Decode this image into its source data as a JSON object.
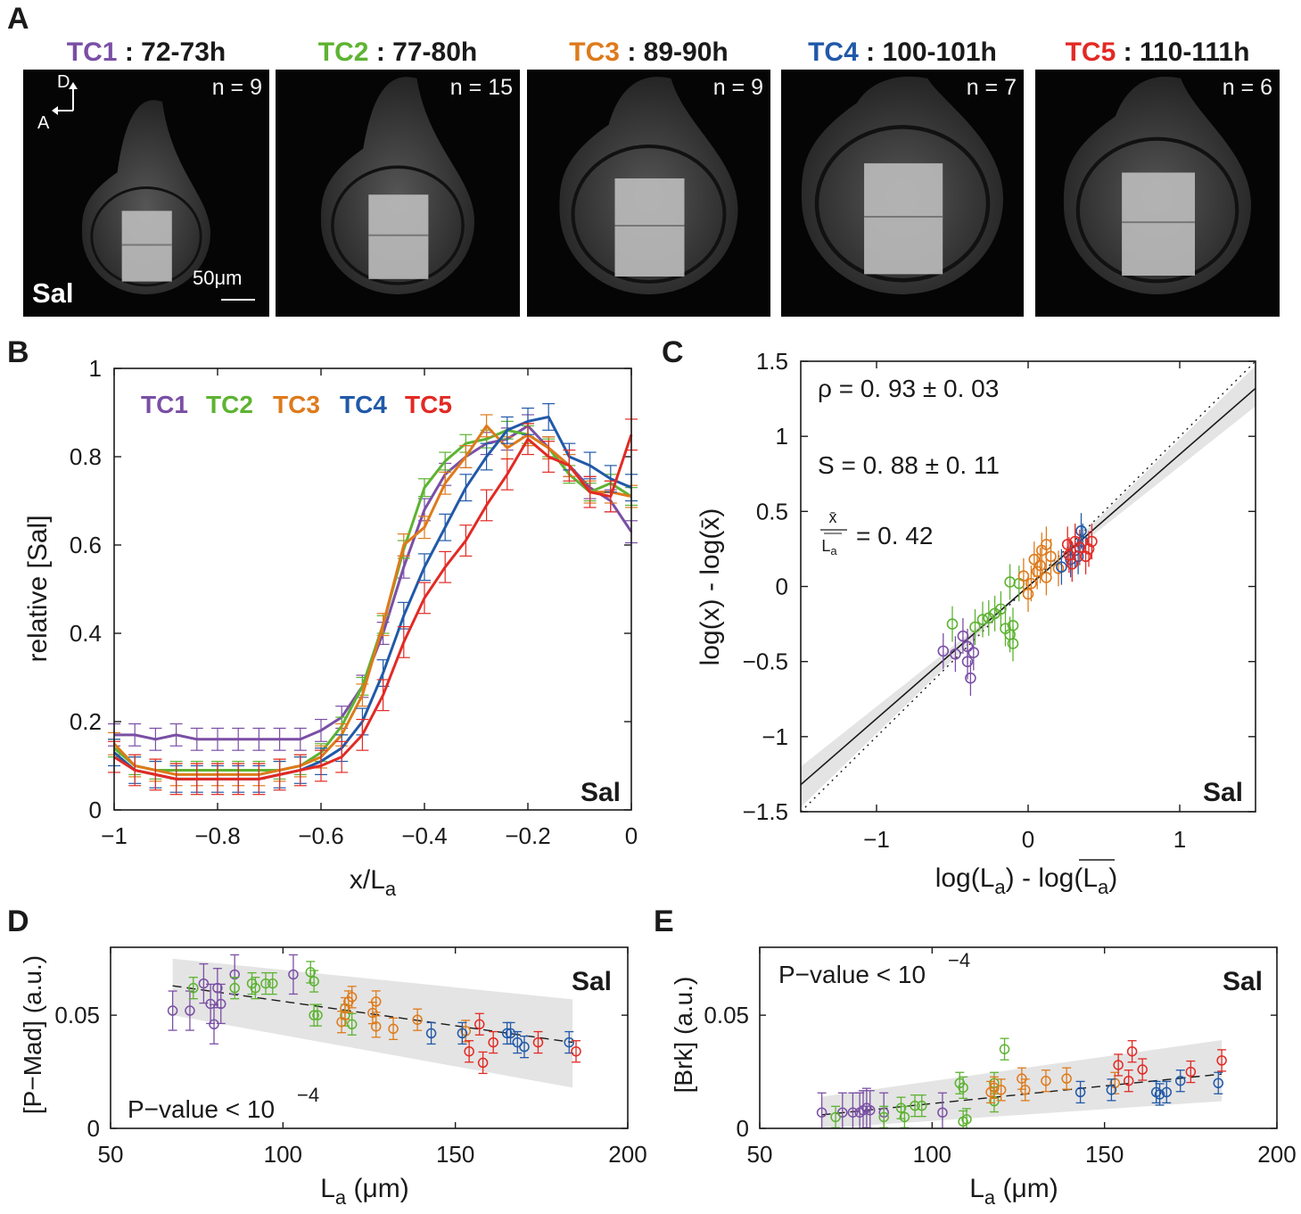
{
  "panel_letters": {
    "a": "A",
    "b": "B",
    "c": "C",
    "d": "D",
    "e": "E"
  },
  "colors": {
    "TC1": "#7a4fa5",
    "TC2": "#5db332",
    "TC3": "#de7a1b",
    "TC4": "#2159a8",
    "TC5": "#e22a24"
  },
  "panel_a": {
    "images": [
      {
        "tc": "TC1",
        "time": " : 72-73h",
        "n": "n = 9",
        "color": "#7a4fa5"
      },
      {
        "tc": "TC2",
        "time": " : 77-80h",
        "n": "n = 15",
        "color": "#5db332"
      },
      {
        "tc": "TC3",
        "time": " : 89-90h",
        "n": "n = 9",
        "color": "#de7a1b"
      },
      {
        "tc": "TC4",
        "time": " : 100-101h",
        "n": "n = 7",
        "color": "#2159a8"
      },
      {
        "tc": "TC5",
        "time": " : 110-111h",
        "n": "n = 6",
        "color": "#e22a24"
      }
    ],
    "axis_d": "D",
    "axis_a": "A",
    "scale_label": "50μm",
    "protein_label": "Sal"
  },
  "chart_data": [
    {
      "panel": "B",
      "type": "line",
      "xlabel": "x/L",
      "xlabel_sub": "a",
      "ylabel": "relative [Sal]",
      "xlim": [
        -1,
        0
      ],
      "ylim": [
        0,
        1
      ],
      "xticks": [
        -1,
        -0.8,
        -0.6,
        -0.4,
        -0.2,
        0
      ],
      "xtick_labels": [
        "−1",
        "−0.8",
        "−0.6",
        "−0.4",
        "−0.2",
        "0"
      ],
      "yticks": [
        0,
        0.2,
        0.4,
        0.6,
        0.8,
        1
      ],
      "ytick_labels": [
        "0",
        "0.2",
        "0.4",
        "0.6",
        "0.8",
        "1"
      ],
      "legend": [
        "TC1",
        "TC2",
        "TC3",
        "TC4",
        "TC5"
      ],
      "annotation": "Sal",
      "x": [
        -1,
        -0.96,
        -0.92,
        -0.88,
        -0.84,
        -0.8,
        -0.76,
        -0.72,
        -0.68,
        -0.64,
        -0.6,
        -0.56,
        -0.52,
        -0.48,
        -0.44,
        -0.4,
        -0.36,
        -0.32,
        -0.28,
        -0.24,
        -0.2,
        -0.16,
        -0.12,
        -0.08,
        -0.04,
        0
      ],
      "series": [
        {
          "name": "TC1",
          "values": [
            0.17,
            0.17,
            0.16,
            0.17,
            0.16,
            0.16,
            0.16,
            0.16,
            0.16,
            0.16,
            0.18,
            0.21,
            0.28,
            0.4,
            0.55,
            0.68,
            0.76,
            0.8,
            0.83,
            0.84,
            0.87,
            0.82,
            0.78,
            0.73,
            0.7,
            0.63
          ],
          "err": 0.025
        },
        {
          "name": "TC2",
          "values": [
            0.14,
            0.1,
            0.09,
            0.09,
            0.09,
            0.09,
            0.09,
            0.09,
            0.09,
            0.1,
            0.13,
            0.19,
            0.28,
            0.42,
            0.59,
            0.73,
            0.79,
            0.83,
            0.84,
            0.86,
            0.85,
            0.82,
            0.76,
            0.72,
            0.74,
            0.71
          ],
          "err": 0.02
        },
        {
          "name": "TC3",
          "values": [
            0.15,
            0.1,
            0.09,
            0.08,
            0.08,
            0.08,
            0.08,
            0.08,
            0.09,
            0.1,
            0.12,
            0.17,
            0.26,
            0.42,
            0.6,
            0.64,
            0.74,
            0.8,
            0.87,
            0.82,
            0.85,
            0.82,
            0.78,
            0.72,
            0.72,
            0.71
          ],
          "err": 0.025
        },
        {
          "name": "TC4",
          "values": [
            0.13,
            0.09,
            0.08,
            0.07,
            0.07,
            0.07,
            0.07,
            0.07,
            0.08,
            0.09,
            0.11,
            0.14,
            0.2,
            0.31,
            0.44,
            0.55,
            0.64,
            0.73,
            0.8,
            0.86,
            0.88,
            0.89,
            0.8,
            0.78,
            0.75,
            0.73
          ],
          "err": 0.03
        },
        {
          "name": "TC5",
          "values": [
            0.12,
            0.09,
            0.08,
            0.07,
            0.07,
            0.07,
            0.07,
            0.07,
            0.08,
            0.09,
            0.1,
            0.12,
            0.17,
            0.26,
            0.38,
            0.48,
            0.55,
            0.61,
            0.69,
            0.76,
            0.84,
            0.8,
            0.78,
            0.72,
            0.71,
            0.85
          ],
          "err": 0.035
        }
      ]
    },
    {
      "panel": "C",
      "type": "scatter",
      "xlabel": "log(L",
      "xlabel_sub": "a",
      "xlabel_mid": ") - log(",
      "xlabel_bar": "L",
      "xlabel_end": ")",
      "ylabel": "log(x) - log(x̄)",
      "xlim": [
        -1.5,
        1.5
      ],
      "ylim": [
        -1.5,
        1.5
      ],
      "xticks": [
        -1,
        0,
        1
      ],
      "xtick_labels": [
        "−1",
        "0",
        "1"
      ],
      "yticks": [
        -1.5,
        -1,
        -0.5,
        0,
        0.5,
        1,
        1.5
      ],
      "ytick_labels": [
        "−1.5",
        "−1",
        "−0.5",
        "0",
        "0.5",
        "1",
        "1.5"
      ],
      "rho_text": "ρ = 0. 93 ± 0. 03",
      "s_text": "S = 0. 88 ± 0. 11",
      "ratio_num": "x̄",
      "ratio_den": "L",
      "ratio_den_sub": "a",
      "ratio_val": "= 0. 42",
      "annotation": "Sal",
      "fit_slope": 0.88,
      "points": [
        {
          "s": "TC1",
          "x": -0.56,
          "y": -0.43
        },
        {
          "s": "TC1",
          "x": -0.48,
          "y": -0.45
        },
        {
          "s": "TC1",
          "x": -0.43,
          "y": -0.33
        },
        {
          "s": "TC1",
          "x": -0.4,
          "y": -0.4
        },
        {
          "s": "TC1",
          "x": -0.4,
          "y": -0.5
        },
        {
          "s": "TC1",
          "x": -0.38,
          "y": -0.61
        },
        {
          "s": "TC1",
          "x": -0.36,
          "y": -0.44
        },
        {
          "s": "TC2",
          "x": -0.5,
          "y": -0.25
        },
        {
          "s": "TC2",
          "x": -0.35,
          "y": -0.27
        },
        {
          "s": "TC2",
          "x": -0.3,
          "y": -0.22
        },
        {
          "s": "TC2",
          "x": -0.26,
          "y": -0.21
        },
        {
          "s": "TC2",
          "x": -0.22,
          "y": -0.18
        },
        {
          "s": "TC2",
          "x": -0.18,
          "y": -0.15
        },
        {
          "s": "TC2",
          "x": -0.15,
          "y": -0.28
        },
        {
          "s": "TC2",
          "x": -0.12,
          "y": -0.32
        },
        {
          "s": "TC2",
          "x": -0.1,
          "y": -0.26
        },
        {
          "s": "TC2",
          "x": -0.1,
          "y": -0.38
        },
        {
          "s": "TC2",
          "x": -0.12,
          "y": 0.03
        },
        {
          "s": "TC2",
          "x": -0.06,
          "y": 0.02
        },
        {
          "s": "TC3",
          "x": -0.03,
          "y": 0.07
        },
        {
          "s": "TC3",
          "x": 0.0,
          "y": -0.05
        },
        {
          "s": "TC3",
          "x": 0.02,
          "y": 0.02
        },
        {
          "s": "TC3",
          "x": 0.04,
          "y": 0.18
        },
        {
          "s": "TC3",
          "x": 0.06,
          "y": 0.1
        },
        {
          "s": "TC3",
          "x": 0.08,
          "y": 0.14
        },
        {
          "s": "TC3",
          "x": 0.09,
          "y": 0.24
        },
        {
          "s": "TC3",
          "x": 0.12,
          "y": 0.06
        },
        {
          "s": "TC3",
          "x": 0.12,
          "y": 0.28
        },
        {
          "s": "TC3",
          "x": 0.15,
          "y": 0.2
        },
        {
          "s": "TC3",
          "x": 0.2,
          "y": 0.12
        },
        {
          "s": "TC4",
          "x": 0.22,
          "y": 0.13
        },
        {
          "s": "TC4",
          "x": 0.28,
          "y": 0.18
        },
        {
          "s": "TC4",
          "x": 0.31,
          "y": 0.24
        },
        {
          "s": "TC4",
          "x": 0.33,
          "y": 0.2
        },
        {
          "s": "TC4",
          "x": 0.35,
          "y": 0.37
        },
        {
          "s": "TC4",
          "x": 0.36,
          "y": 0.3
        },
        {
          "s": "TC5",
          "x": 0.26,
          "y": 0.28
        },
        {
          "s": "TC5",
          "x": 0.27,
          "y": 0.21
        },
        {
          "s": "TC5",
          "x": 0.29,
          "y": 0.15
        },
        {
          "s": "TC5",
          "x": 0.31,
          "y": 0.3
        },
        {
          "s": "TC5",
          "x": 0.34,
          "y": 0.26
        },
        {
          "s": "TC5",
          "x": 0.38,
          "y": 0.2
        },
        {
          "s": "TC5",
          "x": 0.4,
          "y": 0.25
        },
        {
          "s": "TC5",
          "x": 0.42,
          "y": 0.3
        }
      ]
    },
    {
      "panel": "D",
      "type": "scatter",
      "xlabel": "L",
      "xlabel_sub": "a",
      "xlabel_unit": " (μm)",
      "ylabel": "[P−Mad] (a.u.)",
      "xlim": [
        50,
        200
      ],
      "ylim": [
        0,
        0.08
      ],
      "xticks": [
        50,
        100,
        150,
        200
      ],
      "xtick_labels": [
        "50",
        "100",
        "150",
        "200"
      ],
      "yticks": [
        0,
        0.05
      ],
      "ytick_labels": [
        "0",
        "0.05"
      ],
      "pvalue_text": "P−value < 10",
      "pvalue_exp": "−4",
      "annotation": "Sal",
      "fit": [
        [
          68,
          0.063
        ],
        [
          184,
          0.038
        ]
      ],
      "band": [
        [
          68,
          0.075
        ],
        [
          184,
          0.057
        ],
        [
          184,
          0.018
        ],
        [
          68,
          0.05
        ]
      ],
      "points": [
        {
          "s": "TC1",
          "x": 68,
          "y": 0.052
        },
        {
          "s": "TC1",
          "x": 73,
          "y": 0.052
        },
        {
          "s": "TC1",
          "x": 77,
          "y": 0.064
        },
        {
          "s": "TC1",
          "x": 79,
          "y": 0.055
        },
        {
          "s": "TC1",
          "x": 80,
          "y": 0.046
        },
        {
          "s": "TC1",
          "x": 81,
          "y": 0.062
        },
        {
          "s": "TC1",
          "x": 82,
          "y": 0.055
        },
        {
          "s": "TC1",
          "x": 86,
          "y": 0.068
        },
        {
          "s": "TC1",
          "x": 103,
          "y": 0.068
        },
        {
          "s": "TC2",
          "x": 74,
          "y": 0.062
        },
        {
          "s": "TC2",
          "x": 86,
          "y": 0.062
        },
        {
          "s": "TC2",
          "x": 91,
          "y": 0.064
        },
        {
          "s": "TC2",
          "x": 92,
          "y": 0.062
        },
        {
          "s": "TC2",
          "x": 95,
          "y": 0.064
        },
        {
          "s": "TC2",
          "x": 97,
          "y": 0.064
        },
        {
          "s": "TC2",
          "x": 108,
          "y": 0.069
        },
        {
          "s": "TC2",
          "x": 109,
          "y": 0.065
        },
        {
          "s": "TC2",
          "x": 109,
          "y": 0.05
        },
        {
          "s": "TC2",
          "x": 110,
          "y": 0.05
        },
        {
          "s": "TC2",
          "x": 118,
          "y": 0.05
        },
        {
          "s": "TC2",
          "x": 120,
          "y": 0.046
        },
        {
          "s": "TC3",
          "x": 117,
          "y": 0.047
        },
        {
          "s": "TC3",
          "x": 118,
          "y": 0.053
        },
        {
          "s": "TC3",
          "x": 119,
          "y": 0.056
        },
        {
          "s": "TC3",
          "x": 120,
          "y": 0.058
        },
        {
          "s": "TC3",
          "x": 126,
          "y": 0.051
        },
        {
          "s": "TC3",
          "x": 127,
          "y": 0.045
        },
        {
          "s": "TC3",
          "x": 127,
          "y": 0.056
        },
        {
          "s": "TC3",
          "x": 132,
          "y": 0.044
        },
        {
          "s": "TC3",
          "x": 139,
          "y": 0.048
        },
        {
          "s": "TC3",
          "x": 153,
          "y": 0.043
        },
        {
          "s": "TC4",
          "x": 143,
          "y": 0.042
        },
        {
          "s": "TC4",
          "x": 152,
          "y": 0.042
        },
        {
          "s": "TC4",
          "x": 165,
          "y": 0.042
        },
        {
          "s": "TC4",
          "x": 166,
          "y": 0.042
        },
        {
          "s": "TC4",
          "x": 168,
          "y": 0.038
        },
        {
          "s": "TC4",
          "x": 170,
          "y": 0.036
        },
        {
          "s": "TC4",
          "x": 183,
          "y": 0.038
        },
        {
          "s": "TC5",
          "x": 154,
          "y": 0.034
        },
        {
          "s": "TC5",
          "x": 157,
          "y": 0.046
        },
        {
          "s": "TC5",
          "x": 158,
          "y": 0.029
        },
        {
          "s": "TC5",
          "x": 161,
          "y": 0.038
        },
        {
          "s": "TC5",
          "x": 174,
          "y": 0.038
        },
        {
          "s": "TC5",
          "x": 185,
          "y": 0.034
        }
      ]
    },
    {
      "panel": "E",
      "type": "scatter",
      "xlabel": "L",
      "xlabel_sub": "a",
      "xlabel_unit": " (μm)",
      "ylabel": "[Brk] (a.u.)",
      "xlim": [
        50,
        200
      ],
      "ylim": [
        0,
        0.08
      ],
      "xticks": [
        50,
        100,
        150,
        200
      ],
      "xtick_labels": [
        "50",
        "100",
        "150",
        "200"
      ],
      "yticks": [
        0,
        0.05
      ],
      "ytick_labels": [
        "0",
        "0.05"
      ],
      "pvalue_text": "P−value < 10",
      "pvalue_exp": "−4",
      "annotation": "Sal",
      "fit": [
        [
          68,
          0.006
        ],
        [
          184,
          0.024
        ]
      ],
      "band": [
        [
          68,
          0.014
        ],
        [
          184,
          0.039
        ],
        [
          184,
          0.012
        ],
        [
          68,
          0.0
        ]
      ],
      "points": [
        {
          "s": "TC1",
          "x": 68,
          "y": 0.007
        },
        {
          "s": "TC1",
          "x": 74,
          "y": 0.007
        },
        {
          "s": "TC1",
          "x": 77,
          "y": 0.007
        },
        {
          "s": "TC1",
          "x": 79,
          "y": 0.007
        },
        {
          "s": "TC1",
          "x": 80,
          "y": 0.008
        },
        {
          "s": "TC1",
          "x": 81,
          "y": 0.009
        },
        {
          "s": "TC1",
          "x": 82,
          "y": 0.008
        },
        {
          "s": "TC1",
          "x": 86,
          "y": 0.007
        },
        {
          "s": "TC1",
          "x": 103,
          "y": 0.007
        },
        {
          "s": "TC2",
          "x": 72,
          "y": 0.005
        },
        {
          "s": "TC2",
          "x": 86,
          "y": 0.005
        },
        {
          "s": "TC2",
          "x": 91,
          "y": 0.009
        },
        {
          "s": "TC2",
          "x": 92,
          "y": 0.005
        },
        {
          "s": "TC2",
          "x": 95,
          "y": 0.01
        },
        {
          "s": "TC2",
          "x": 97,
          "y": 0.01
        },
        {
          "s": "TC2",
          "x": 108,
          "y": 0.02
        },
        {
          "s": "TC2",
          "x": 109,
          "y": 0.018
        },
        {
          "s": "TC2",
          "x": 109,
          "y": 0.003
        },
        {
          "s": "TC2",
          "x": 110,
          "y": 0.004
        },
        {
          "s": "TC2",
          "x": 118,
          "y": 0.012
        },
        {
          "s": "TC2",
          "x": 118,
          "y": 0.02
        },
        {
          "s": "TC2",
          "x": 121,
          "y": 0.035
        },
        {
          "s": "TC3",
          "x": 117,
          "y": 0.016
        },
        {
          "s": "TC3",
          "x": 118,
          "y": 0.018
        },
        {
          "s": "TC3",
          "x": 120,
          "y": 0.017
        },
        {
          "s": "TC3",
          "x": 126,
          "y": 0.022
        },
        {
          "s": "TC3",
          "x": 127,
          "y": 0.017
        },
        {
          "s": "TC3",
          "x": 133,
          "y": 0.021
        },
        {
          "s": "TC3",
          "x": 139,
          "y": 0.022
        },
        {
          "s": "TC3",
          "x": 153,
          "y": 0.02
        },
        {
          "s": "TC4",
          "x": 143,
          "y": 0.016
        },
        {
          "s": "TC4",
          "x": 152,
          "y": 0.017
        },
        {
          "s": "TC4",
          "x": 165,
          "y": 0.016
        },
        {
          "s": "TC4",
          "x": 166,
          "y": 0.015
        },
        {
          "s": "TC4",
          "x": 168,
          "y": 0.016
        },
        {
          "s": "TC4",
          "x": 172,
          "y": 0.021
        },
        {
          "s": "TC4",
          "x": 183,
          "y": 0.02
        },
        {
          "s": "TC5",
          "x": 154,
          "y": 0.028
        },
        {
          "s": "TC5",
          "x": 157,
          "y": 0.021
        },
        {
          "s": "TC5",
          "x": 158,
          "y": 0.034
        },
        {
          "s": "TC5",
          "x": 161,
          "y": 0.026
        },
        {
          "s": "TC5",
          "x": 175,
          "y": 0.025
        },
        {
          "s": "TC5",
          "x": 184,
          "y": 0.03
        }
      ]
    }
  ]
}
